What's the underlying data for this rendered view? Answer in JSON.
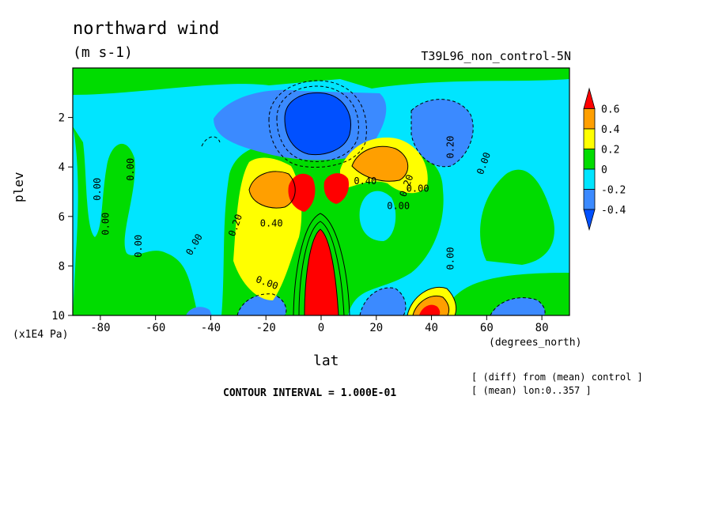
{
  "chart_data": {
    "type": "heatmap",
    "subtype": "filled-contour",
    "title": "northward wind",
    "units_label": "(m s-1)",
    "run_label": "T39L96_non_control-5N",
    "xlabel": "lat",
    "xunit": "(degrees_north)",
    "ylabel": "plev",
    "yunit": "(x1E4 Pa)",
    "xlim": [
      -90,
      90
    ],
    "ylim": [
      10,
      0
    ],
    "x_ticks": [
      "-80",
      "-60",
      "-40",
      "-20",
      "0",
      "20",
      "40",
      "60",
      "80"
    ],
    "x_tick_values": [
      -80,
      -60,
      -40,
      -20,
      0,
      20,
      40,
      60,
      80
    ],
    "y_ticks": [
      "2",
      "4",
      "6",
      "8",
      "10"
    ],
    "y_tick_values": [
      2,
      4,
      6,
      8,
      10
    ],
    "contour_interval_text": "CONTOUR INTERVAL = 1.000E-01",
    "notes": [
      "[ (diff) from (mean) control ]",
      "[ (mean) lon:0..357 ]"
    ],
    "colorbar": {
      "levels": [
        "0.6",
        "0.4",
        "0.2",
        "0",
        "-0.2",
        "-0.4"
      ],
      "colors": [
        "#ff0000",
        "#ff9f00",
        "#ffff00",
        "#00dc00",
        "#00e5ff",
        "#3b8aff",
        "#0050ff"
      ]
    },
    "contour_labels": [
      "0.00",
      "0.00",
      "0.00",
      "0.00",
      "0.00",
      "0.00",
      "0.20",
      "0.40",
      "0.40",
      "0.20",
      "0.00",
      "0.20",
      "0.00",
      "0.00",
      "0.00"
    ],
    "features": [
      {
        "kind": "min",
        "lat": 5,
        "plev": 2.5,
        "value": -0.4
      },
      {
        "kind": "max",
        "lat": 0,
        "plev": 9.2,
        "value": 0.6
      },
      {
        "kind": "max",
        "lat": -5,
        "plev": 5.0,
        "value": 0.6
      },
      {
        "kind": "max",
        "lat": 10,
        "plev": 5.0,
        "value": 0.6
      },
      {
        "kind": "max",
        "lat": 42,
        "plev": 9.8,
        "value": 0.6
      }
    ]
  }
}
